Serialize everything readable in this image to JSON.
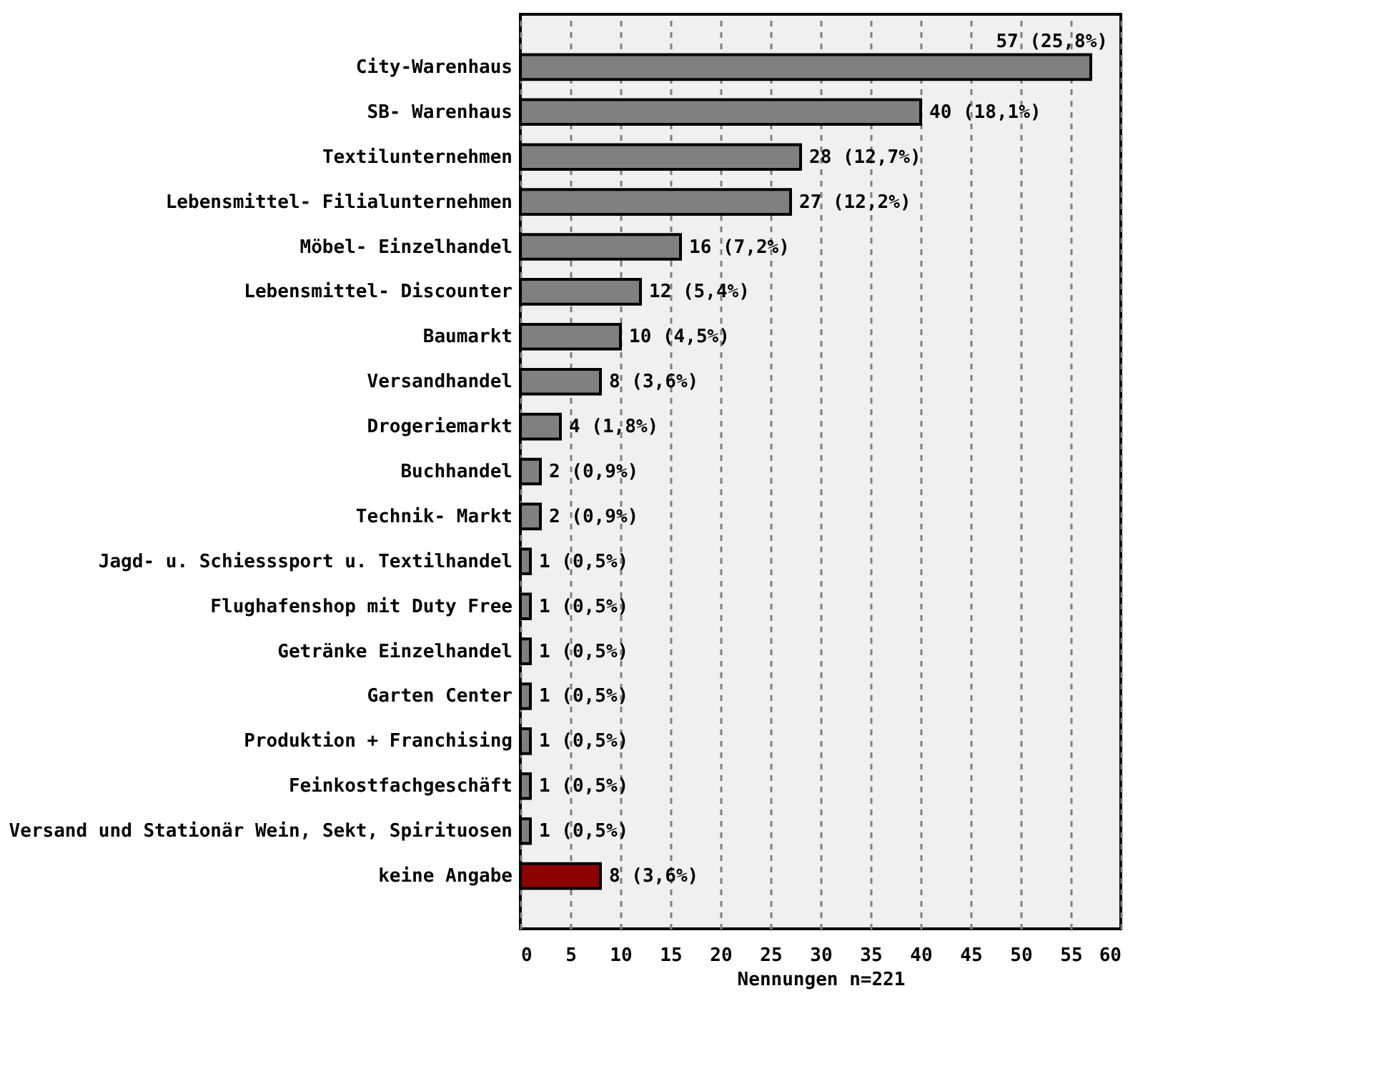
{
  "chart_data": {
    "type": "bar",
    "orientation": "horizontal",
    "xlabel": "Nennungen    n=221",
    "categories": [
      "City-Warenhaus",
      "SB- Warenhaus",
      "Textilunternehmen",
      "Lebensmittel- Filialunternehmen",
      "Möbel- Einzelhandel",
      "Lebensmittel- Discounter",
      "Baumarkt",
      "Versandhandel",
      "Drogeriemarkt",
      "Buchhandel",
      "Technik- Markt",
      "Jagd- u. Schiesssport u. Textilhandel",
      "Flughafenshop mit Duty Free",
      "Getränke Einzelhandel",
      "Garten Center",
      "Produktion + Franchising",
      "Feinkostfachgeschäft",
      "Versand und Stationär Wein, Sekt, Spirituosen",
      "keine Angabe"
    ],
    "values": [
      57,
      40,
      28,
      27,
      16,
      12,
      10,
      8,
      4,
      2,
      2,
      1,
      1,
      1,
      1,
      1,
      1,
      1,
      8
    ],
    "colors": [
      "#808080",
      "#808080",
      "#808080",
      "#808080",
      "#808080",
      "#808080",
      "#808080",
      "#808080",
      "#808080",
      "#808080",
      "#808080",
      "#808080",
      "#808080",
      "#808080",
      "#808080",
      "#808080",
      "#808080",
      "#808080",
      "#8b0000"
    ],
    "value_labels": [
      "57 (25,8%)",
      "40 (18,1%)",
      "28 (12,7%)",
      "27 (12,2%)",
      "16 (7,2%)",
      "12 (5,4%)",
      "10 (4,5%)",
      "8 (3,6%)",
      "4 (1,8%)",
      "2 (0,9%)",
      "2 (0,9%)",
      "1 (0,5%)",
      "1 (0,5%)",
      "1 (0,5%)",
      "1 (0,5%)",
      "1 (0,5%)",
      "1 (0,5%)",
      "1 (0,5%)",
      "8 (3,6%)"
    ],
    "xlim": [
      0,
      60
    ],
    "xticks": [
      0,
      5,
      10,
      15,
      20,
      25,
      30,
      35,
      40,
      45,
      50,
      55,
      60
    ],
    "grid": "x"
  }
}
